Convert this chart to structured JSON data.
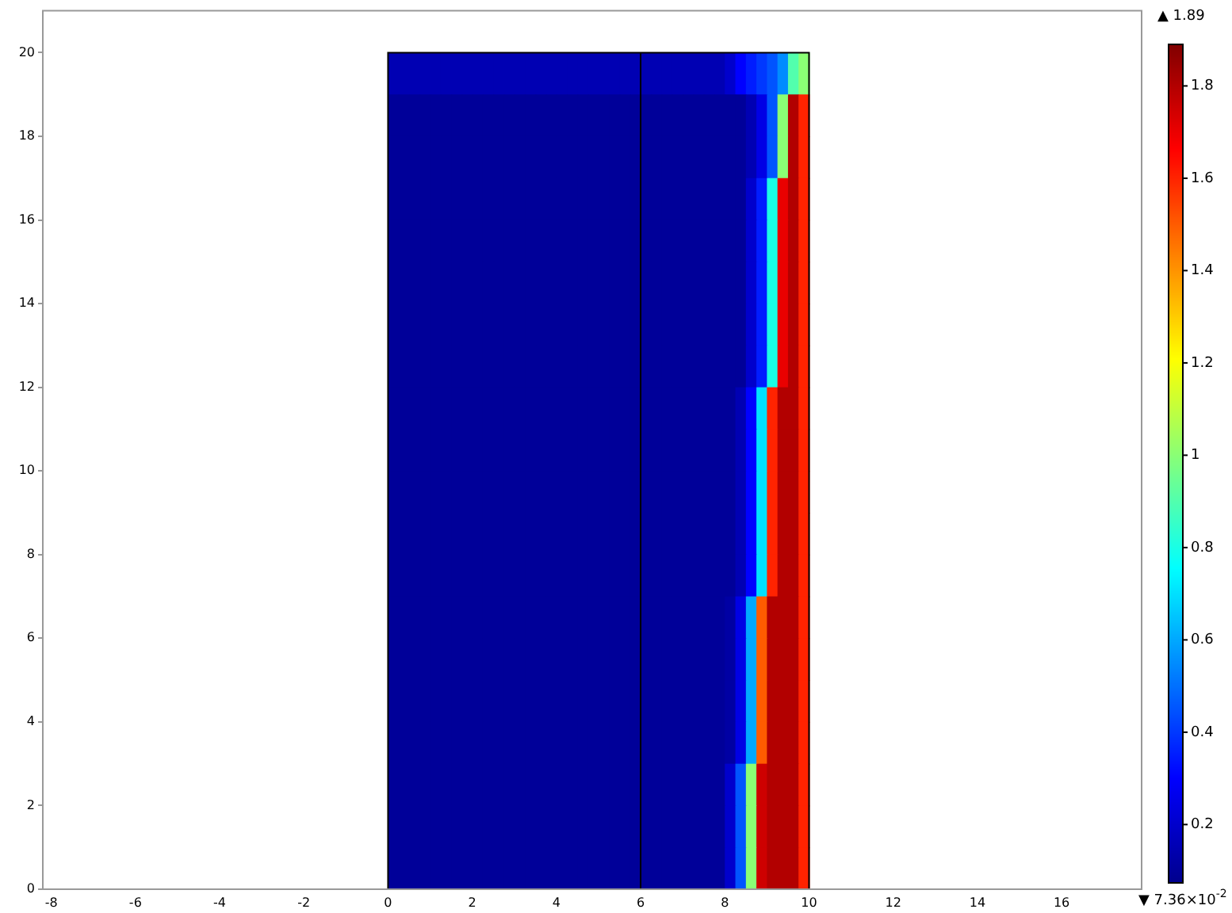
{
  "chart_data": {
    "type": "heatmap",
    "x": [
      0.125,
      0.375,
      0.625,
      0.875,
      1.125,
      1.375,
      1.625,
      1.875,
      2.125,
      2.375,
      2.625,
      2.875,
      3.125,
      3.375,
      3.625,
      3.875,
      4.125,
      4.375,
      4.625,
      4.875,
      5.125,
      5.375,
      5.625,
      5.875,
      6.125,
      6.375,
      6.625,
      6.875,
      7.125,
      7.375,
      7.625,
      7.875,
      8.125,
      8.375,
      8.625,
      8.875,
      9.125,
      9.375,
      9.625,
      9.875
    ],
    "y": [
      19.5,
      18.5,
      17.5,
      16.5,
      15.5,
      14.5,
      13.5,
      12.5,
      11.5,
      10.5,
      9.5,
      8.5,
      7.5,
      6.5,
      5.5,
      4.5,
      3.5,
      2.5,
      1.5,
      0.5
    ],
    "cells": [
      [
        0.15,
        0.15,
        0.15,
        0.15,
        0.15,
        0.15,
        0.15,
        0.15,
        0.15,
        0.15,
        0.15,
        0.15,
        0.15,
        0.15,
        0.15,
        0.15,
        0.15,
        0.15,
        0.15,
        0.15,
        0.15,
        0.15,
        0.15,
        0.15,
        0.15,
        0.15,
        0.15,
        0.15,
        0.15,
        0.15,
        0.15,
        0.15,
        0.2,
        0.3,
        0.35,
        0.4,
        0.45,
        0.55,
        0.9,
        1.0
      ],
      [
        0.1,
        0.1,
        0.1,
        0.1,
        0.1,
        0.1,
        0.1,
        0.1,
        0.1,
        0.1,
        0.1,
        0.1,
        0.1,
        0.1,
        0.1,
        0.1,
        0.1,
        0.1,
        0.1,
        0.1,
        0.1,
        0.1,
        0.1,
        0.1,
        0.1,
        0.1,
        0.1,
        0.1,
        0.1,
        0.1,
        0.1,
        0.1,
        0.1,
        0.1,
        0.15,
        0.25,
        0.45,
        1.0,
        1.8,
        1.6
      ],
      [
        0.1,
        0.1,
        0.1,
        0.1,
        0.1,
        0.1,
        0.1,
        0.1,
        0.1,
        0.1,
        0.1,
        0.1,
        0.1,
        0.1,
        0.1,
        0.1,
        0.1,
        0.1,
        0.1,
        0.1,
        0.1,
        0.1,
        0.1,
        0.1,
        0.1,
        0.1,
        0.1,
        0.1,
        0.1,
        0.1,
        0.1,
        0.1,
        0.1,
        0.1,
        0.15,
        0.25,
        0.45,
        1.0,
        1.8,
        1.6
      ],
      [
        0.1,
        0.1,
        0.1,
        0.1,
        0.1,
        0.1,
        0.1,
        0.1,
        0.1,
        0.1,
        0.1,
        0.1,
        0.1,
        0.1,
        0.1,
        0.1,
        0.1,
        0.1,
        0.1,
        0.1,
        0.1,
        0.1,
        0.1,
        0.1,
        0.1,
        0.1,
        0.1,
        0.1,
        0.1,
        0.1,
        0.1,
        0.1,
        0.1,
        0.1,
        0.2,
        0.35,
        0.8,
        1.7,
        1.8,
        1.6
      ],
      [
        0.1,
        0.1,
        0.1,
        0.1,
        0.1,
        0.1,
        0.1,
        0.1,
        0.1,
        0.1,
        0.1,
        0.1,
        0.1,
        0.1,
        0.1,
        0.1,
        0.1,
        0.1,
        0.1,
        0.1,
        0.1,
        0.1,
        0.1,
        0.1,
        0.1,
        0.1,
        0.1,
        0.1,
        0.1,
        0.1,
        0.1,
        0.1,
        0.1,
        0.1,
        0.2,
        0.35,
        0.8,
        1.7,
        1.8,
        1.6
      ],
      [
        0.1,
        0.1,
        0.1,
        0.1,
        0.1,
        0.1,
        0.1,
        0.1,
        0.1,
        0.1,
        0.1,
        0.1,
        0.1,
        0.1,
        0.1,
        0.1,
        0.1,
        0.1,
        0.1,
        0.1,
        0.1,
        0.1,
        0.1,
        0.1,
        0.1,
        0.1,
        0.1,
        0.1,
        0.1,
        0.1,
        0.1,
        0.1,
        0.1,
        0.1,
        0.2,
        0.35,
        0.8,
        1.7,
        1.8,
        1.6
      ],
      [
        0.1,
        0.1,
        0.1,
        0.1,
        0.1,
        0.1,
        0.1,
        0.1,
        0.1,
        0.1,
        0.1,
        0.1,
        0.1,
        0.1,
        0.1,
        0.1,
        0.1,
        0.1,
        0.1,
        0.1,
        0.1,
        0.1,
        0.1,
        0.1,
        0.1,
        0.1,
        0.1,
        0.1,
        0.1,
        0.1,
        0.1,
        0.1,
        0.1,
        0.1,
        0.2,
        0.35,
        0.8,
        1.7,
        1.8,
        1.6
      ],
      [
        0.1,
        0.1,
        0.1,
        0.1,
        0.1,
        0.1,
        0.1,
        0.1,
        0.1,
        0.1,
        0.1,
        0.1,
        0.1,
        0.1,
        0.1,
        0.1,
        0.1,
        0.1,
        0.1,
        0.1,
        0.1,
        0.1,
        0.1,
        0.1,
        0.1,
        0.1,
        0.1,
        0.1,
        0.1,
        0.1,
        0.1,
        0.1,
        0.1,
        0.1,
        0.2,
        0.35,
        0.8,
        1.7,
        1.8,
        1.6
      ],
      [
        0.1,
        0.1,
        0.1,
        0.1,
        0.1,
        0.1,
        0.1,
        0.1,
        0.1,
        0.1,
        0.1,
        0.1,
        0.1,
        0.1,
        0.1,
        0.1,
        0.1,
        0.1,
        0.1,
        0.1,
        0.1,
        0.1,
        0.1,
        0.1,
        0.1,
        0.1,
        0.1,
        0.1,
        0.1,
        0.1,
        0.1,
        0.1,
        0.1,
        0.15,
        0.3,
        0.7,
        1.6,
        1.8,
        1.8,
        1.6
      ],
      [
        0.1,
        0.1,
        0.1,
        0.1,
        0.1,
        0.1,
        0.1,
        0.1,
        0.1,
        0.1,
        0.1,
        0.1,
        0.1,
        0.1,
        0.1,
        0.1,
        0.1,
        0.1,
        0.1,
        0.1,
        0.1,
        0.1,
        0.1,
        0.1,
        0.1,
        0.1,
        0.1,
        0.1,
        0.1,
        0.1,
        0.1,
        0.1,
        0.1,
        0.15,
        0.3,
        0.7,
        1.6,
        1.8,
        1.8,
        1.6
      ],
      [
        0.1,
        0.1,
        0.1,
        0.1,
        0.1,
        0.1,
        0.1,
        0.1,
        0.1,
        0.1,
        0.1,
        0.1,
        0.1,
        0.1,
        0.1,
        0.1,
        0.1,
        0.1,
        0.1,
        0.1,
        0.1,
        0.1,
        0.1,
        0.1,
        0.1,
        0.1,
        0.1,
        0.1,
        0.1,
        0.1,
        0.1,
        0.1,
        0.1,
        0.15,
        0.3,
        0.7,
        1.6,
        1.8,
        1.8,
        1.6
      ],
      [
        0.1,
        0.1,
        0.1,
        0.1,
        0.1,
        0.1,
        0.1,
        0.1,
        0.1,
        0.1,
        0.1,
        0.1,
        0.1,
        0.1,
        0.1,
        0.1,
        0.1,
        0.1,
        0.1,
        0.1,
        0.1,
        0.1,
        0.1,
        0.1,
        0.1,
        0.1,
        0.1,
        0.1,
        0.1,
        0.1,
        0.1,
        0.1,
        0.1,
        0.15,
        0.3,
        0.7,
        1.6,
        1.8,
        1.8,
        1.6
      ],
      [
        0.1,
        0.1,
        0.1,
        0.1,
        0.1,
        0.1,
        0.1,
        0.1,
        0.1,
        0.1,
        0.1,
        0.1,
        0.1,
        0.1,
        0.1,
        0.1,
        0.1,
        0.1,
        0.1,
        0.1,
        0.1,
        0.1,
        0.1,
        0.1,
        0.1,
        0.1,
        0.1,
        0.1,
        0.1,
        0.1,
        0.1,
        0.1,
        0.1,
        0.15,
        0.3,
        0.7,
        1.6,
        1.8,
        1.8,
        1.6
      ],
      [
        0.1,
        0.1,
        0.1,
        0.1,
        0.1,
        0.1,
        0.1,
        0.1,
        0.1,
        0.1,
        0.1,
        0.1,
        0.1,
        0.1,
        0.1,
        0.1,
        0.1,
        0.1,
        0.1,
        0.1,
        0.1,
        0.1,
        0.1,
        0.1,
        0.1,
        0.1,
        0.1,
        0.1,
        0.1,
        0.1,
        0.1,
        0.1,
        0.12,
        0.25,
        0.6,
        1.5,
        1.8,
        1.8,
        1.8,
        1.6
      ],
      [
        0.1,
        0.1,
        0.1,
        0.1,
        0.1,
        0.1,
        0.1,
        0.1,
        0.1,
        0.1,
        0.1,
        0.1,
        0.1,
        0.1,
        0.1,
        0.1,
        0.1,
        0.1,
        0.1,
        0.1,
        0.1,
        0.1,
        0.1,
        0.1,
        0.1,
        0.1,
        0.1,
        0.1,
        0.1,
        0.1,
        0.1,
        0.1,
        0.12,
        0.25,
        0.6,
        1.5,
        1.8,
        1.8,
        1.8,
        1.6
      ],
      [
        0.1,
        0.1,
        0.1,
        0.1,
        0.1,
        0.1,
        0.1,
        0.1,
        0.1,
        0.1,
        0.1,
        0.1,
        0.1,
        0.1,
        0.1,
        0.1,
        0.1,
        0.1,
        0.1,
        0.1,
        0.1,
        0.1,
        0.1,
        0.1,
        0.1,
        0.1,
        0.1,
        0.1,
        0.1,
        0.1,
        0.1,
        0.1,
        0.12,
        0.25,
        0.6,
        1.5,
        1.8,
        1.8,
        1.8,
        1.6
      ],
      [
        0.1,
        0.1,
        0.1,
        0.1,
        0.1,
        0.1,
        0.1,
        0.1,
        0.1,
        0.1,
        0.1,
        0.1,
        0.1,
        0.1,
        0.1,
        0.1,
        0.1,
        0.1,
        0.1,
        0.1,
        0.1,
        0.1,
        0.1,
        0.1,
        0.1,
        0.1,
        0.1,
        0.1,
        0.1,
        0.1,
        0.1,
        0.1,
        0.12,
        0.25,
        0.6,
        1.5,
        1.8,
        1.8,
        1.8,
        1.6
      ],
      [
        0.1,
        0.1,
        0.1,
        0.1,
        0.1,
        0.1,
        0.1,
        0.1,
        0.1,
        0.1,
        0.1,
        0.1,
        0.1,
        0.1,
        0.1,
        0.1,
        0.1,
        0.1,
        0.1,
        0.1,
        0.1,
        0.1,
        0.1,
        0.1,
        0.1,
        0.1,
        0.1,
        0.1,
        0.1,
        0.1,
        0.1,
        0.1,
        0.2,
        0.45,
        1.0,
        1.75,
        1.8,
        1.8,
        1.8,
        1.6
      ],
      [
        0.1,
        0.1,
        0.1,
        0.1,
        0.1,
        0.1,
        0.1,
        0.1,
        0.1,
        0.1,
        0.1,
        0.1,
        0.1,
        0.1,
        0.1,
        0.1,
        0.1,
        0.1,
        0.1,
        0.1,
        0.1,
        0.1,
        0.1,
        0.1,
        0.1,
        0.1,
        0.1,
        0.1,
        0.1,
        0.1,
        0.1,
        0.1,
        0.2,
        0.45,
        1.0,
        1.75,
        1.8,
        1.8,
        1.8,
        1.6
      ],
      [
        0.1,
        0.1,
        0.1,
        0.1,
        0.1,
        0.1,
        0.1,
        0.1,
        0.1,
        0.1,
        0.1,
        0.1,
        0.1,
        0.1,
        0.1,
        0.1,
        0.1,
        0.1,
        0.1,
        0.1,
        0.1,
        0.1,
        0.1,
        0.1,
        0.1,
        0.1,
        0.1,
        0.1,
        0.1,
        0.1,
        0.1,
        0.1,
        0.2,
        0.45,
        1.0,
        1.75,
        1.8,
        1.8,
        1.8,
        1.6
      ]
    ],
    "xlim": [
      -8.2,
      17.9
    ],
    "ylim": [
      0,
      21
    ],
    "xticks": [
      -8,
      -6,
      -4,
      -2,
      0,
      2,
      4,
      6,
      8,
      10,
      12,
      14,
      16
    ],
    "yticks": [
      0,
      2,
      4,
      6,
      8,
      10,
      12,
      14,
      16,
      18,
      20
    ],
    "clim": [
      0.0736,
      1.89
    ],
    "cticks": [
      0.2,
      0.4,
      0.6,
      0.8,
      1,
      1.2,
      1.4,
      1.6,
      1.8
    ],
    "ref_lines": [
      {
        "axis": "x",
        "value": 6,
        "color": "#000000"
      }
    ],
    "annotations": [
      "▲ 1.89",
      "▼ 7.36×10$^{-2}$"
    ]
  }
}
